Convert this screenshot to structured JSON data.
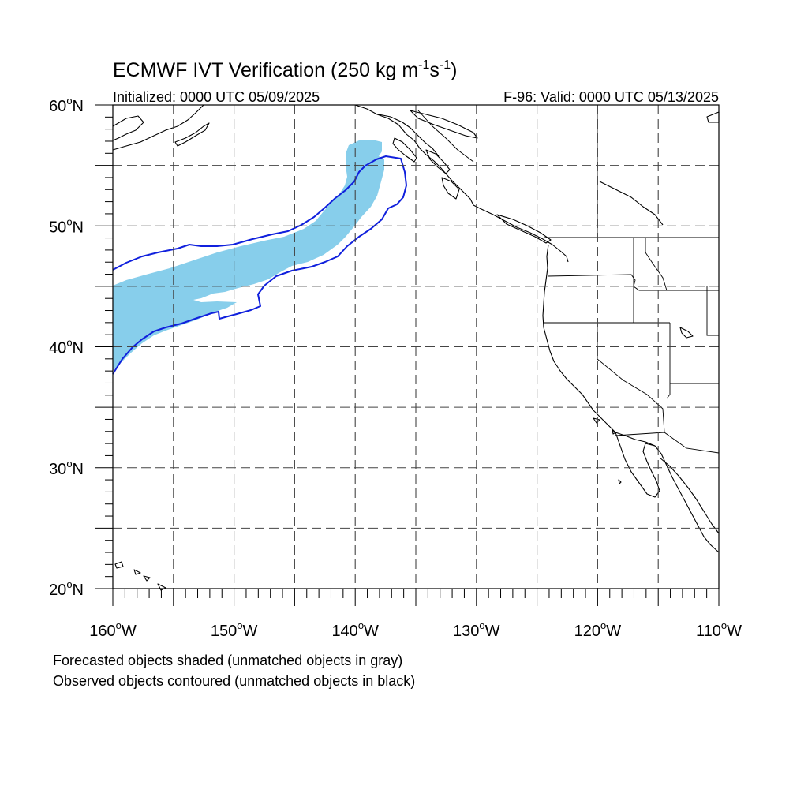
{
  "title": {
    "main": "ECMWF IVT Verification (250 kg m",
    "sup1": "-1",
    "mid": "s",
    "sup2": "-1",
    "end": ")"
  },
  "subtitle_left": "Initialized: 0000 UTC 05/09/2025",
  "subtitle_right": "F-96: Valid: 0000 UTC 05/13/2025",
  "lat_labels": [
    {
      "text": "60",
      "deg": "o",
      "hem": "N",
      "lat": 60
    },
    {
      "text": "50",
      "deg": "o",
      "hem": "N",
      "lat": 50
    },
    {
      "text": "40",
      "deg": "o",
      "hem": "N",
      "lat": 40
    },
    {
      "text": "30",
      "deg": "o",
      "hem": "N",
      "lat": 30
    },
    {
      "text": "20",
      "deg": "o",
      "hem": "N",
      "lat": 20
    }
  ],
  "lon_labels": [
    {
      "text": "160",
      "deg": "o",
      "hem": "W",
      "lon": -160
    },
    {
      "text": "150",
      "deg": "o",
      "hem": "W",
      "lon": -150
    },
    {
      "text": "140",
      "deg": "o",
      "hem": "W",
      "lon": -140
    },
    {
      "text": "130",
      "deg": "o",
      "hem": "W",
      "lon": -130
    },
    {
      "text": "120",
      "deg": "o",
      "hem": "W",
      "lon": -120
    },
    {
      "text": "110",
      "deg": "o",
      "hem": "W",
      "lon": -110
    }
  ],
  "map": {
    "lon_range": [
      -160,
      -110
    ],
    "lat_range": [
      20,
      60
    ],
    "grid_lons": [
      -155,
      -150,
      -145,
      -140,
      -135,
      -130,
      -125,
      -120,
      -115
    ],
    "grid_lats": [
      25,
      30,
      35,
      40,
      45,
      50,
      55
    ]
  },
  "colors": {
    "forecast_fill": "#87ceeb",
    "observed_contour": "#1020dd"
  },
  "legend": {
    "line1": "Forecasted objects shaded (unmatched objects in gray)",
    "line2": "Observed objects contoured (unmatched objects in black)"
  }
}
